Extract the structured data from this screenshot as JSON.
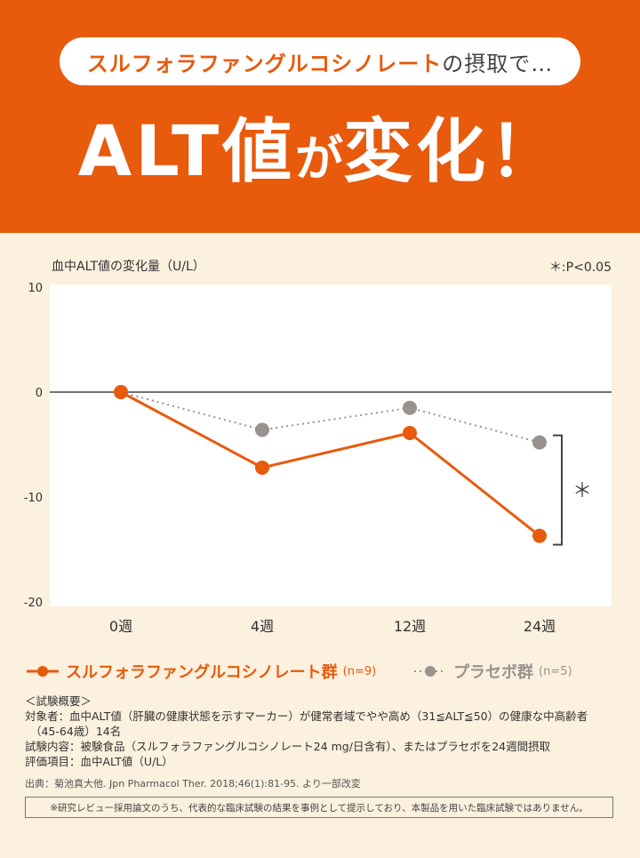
{
  "header": {
    "pill_highlight": "スルフォラファングルコシノレート",
    "pill_rest": "の摂取で…",
    "headline_part1": "ALT値",
    "headline_part2": "が",
    "headline_part3": "変化！"
  },
  "chart_data": {
    "type": "line",
    "ylabel": "血中ALT値の変化量（U/L）",
    "significance_note": "＊:P<0.05",
    "categories": [
      "0週",
      "4週",
      "12週",
      "24週"
    ],
    "ylim": [
      -20,
      10
    ],
    "yticks": [
      "10",
      "0",
      "-10",
      "-20"
    ],
    "series": [
      {
        "name": "スルフォラファングルコシノレート群",
        "n_label": "(n=9)",
        "color": "#e85a0c",
        "style": "solid",
        "values": [
          0,
          -7.2,
          -3.9,
          -13.7
        ]
      },
      {
        "name": "プラセボ群",
        "n_label": "(n=5)",
        "color": "#9a9290",
        "style": "dotted",
        "values": [
          0,
          -3.6,
          -1.5,
          -4.8
        ]
      }
    ],
    "annotation": "＊"
  },
  "info": {
    "title": "＜試験概要＞",
    "line1": "対象者：血中ALT値（肝臓の健康状態を示すマーカー）が健常者域でやや高め（31≦ALT≦50）の健康な中高齢者",
    "line2": "（45-64歳）14名",
    "line3": "試験内容：被験食品（スルフォラファングルコシノレート24 mg/日含有）、またはプラセボを24週間摂取",
    "line4": "評価項目：血中ALT値（U/L）"
  },
  "source": "出典：菊池真大他. Jpn Pharmacol Ther. 2018;46(1):81-95. より一部改変",
  "disclaimer": "※研究レビュー採用論文のうち、代表的な臨床試験の結果を事例として提示しており、本製品を用いた臨床試験ではありません。"
}
